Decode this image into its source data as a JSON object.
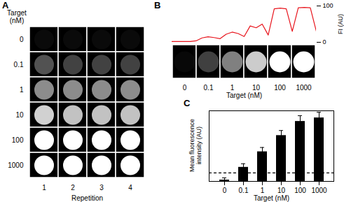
{
  "chart_data": [
    {
      "type": "heatmap",
      "title": "A",
      "xlabel": "Repetition",
      "ylabel": "Target (nM)",
      "x": [
        1,
        2,
        3,
        4
      ],
      "categories": [
        0,
        0.1,
        1,
        10,
        100,
        1000
      ],
      "cells": [
        [
          4,
          4,
          4,
          4
        ],
        [
          32,
          26,
          26,
          26
        ],
        [
          55,
          55,
          55,
          55
        ],
        [
          82,
          76,
          76,
          76
        ],
        [
          100,
          100,
          100,
          100
        ],
        [
          100,
          100,
          100,
          100
        ]
      ],
      "intensity_lim": [
        0,
        100
      ],
      "color": "#ffffff"
    },
    {
      "type": "line",
      "title": "B",
      "ylabel": "FI (AU)",
      "x": [
        0,
        0.25,
        0.5,
        0.75,
        1,
        1.25,
        1.5,
        1.75,
        2,
        2.25,
        2.5,
        2.75,
        3,
        3.25,
        3.5,
        3.75,
        4,
        4.25,
        4.5,
        4.75,
        5,
        5.25,
        5.5,
        5.75,
        6
      ],
      "values": [
        2,
        2,
        2,
        2,
        4,
        12,
        15,
        13,
        10,
        22,
        28,
        24,
        16,
        45,
        40,
        50,
        20,
        92,
        94,
        92,
        30,
        95,
        96,
        95,
        30
      ],
      "color": "#e8141c",
      "xlim": [
        0,
        6
      ],
      "ylim": [
        0,
        100
      ],
      "yticks": [
        0,
        100
      ],
      "tick_labels": "y"
    },
    {
      "type": "heatmap",
      "xlabel": "Target (nM)",
      "categories": [
        0,
        0.1,
        1,
        10,
        100,
        1000
      ],
      "cells": [
        3,
        25,
        50,
        80,
        100,
        100
      ],
      "intensity_lim": [
        0,
        100
      ],
      "color": "#ffffff"
    },
    {
      "type": "bar",
      "title": "C",
      "categories": [
        0,
        0.1,
        1,
        10,
        100,
        1000
      ],
      "values": [
        2,
        20,
        42,
        65,
        85,
        90
      ],
      "errors": [
        3,
        5,
        6,
        7,
        8,
        8
      ],
      "reference_line": 12,
      "ylim": [
        0,
        100
      ],
      "color": "#000000",
      "xlabel": "Target (nM)",
      "ylabel": "Mean fluorescence intensity (AU)",
      "tick_labels": "x"
    }
  ]
}
